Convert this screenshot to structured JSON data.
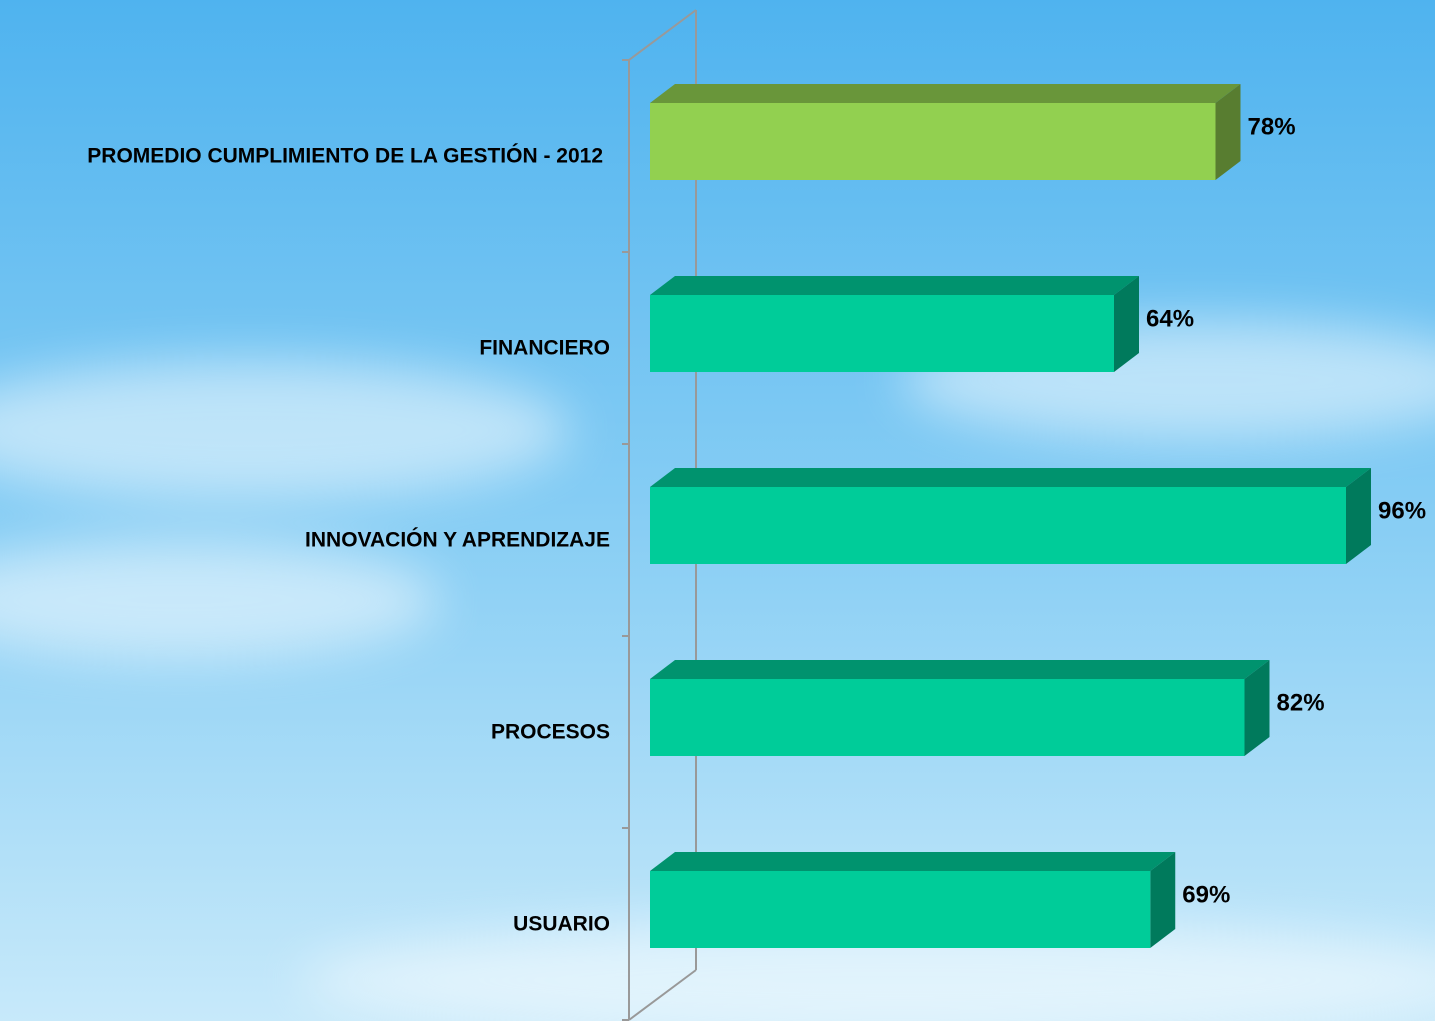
{
  "chart_data": {
    "type": "bar3d-horizontal",
    "categories": [
      "PROMEDIO CUMPLIMIENTO DE LA GESTIÓN - 2012",
      "FINANCIERO",
      "INNOVACIÓN Y APRENDIZAJE",
      "PROCESOS",
      "USUARIO"
    ],
    "values": [
      78,
      64,
      96,
      82,
      69
    ],
    "value_labels": [
      "78%",
      "64%",
      "96%",
      "82%",
      "69%"
    ],
    "colors": [
      "#92d050",
      "#00cc99",
      "#00cc99",
      "#00cc99",
      "#00cc99"
    ],
    "xlim": [
      0,
      100
    ]
  }
}
